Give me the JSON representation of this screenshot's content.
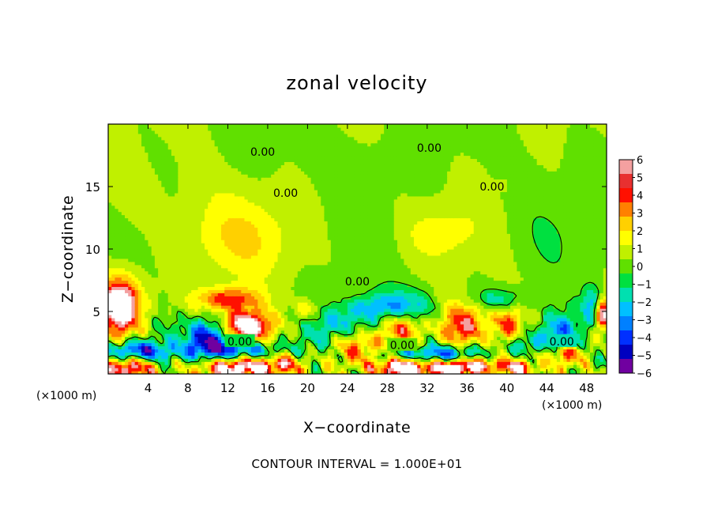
{
  "chart_data": {
    "type": "heatmap",
    "title": "zonal velocity",
    "xlabel": "X−coordinate",
    "ylabel": "Z−coordinate",
    "x_multiplier_label": "(×1000 m)",
    "z_multiplier_label": "(×1000 m)",
    "xlim": [
      0,
      50
    ],
    "zlim": [
      0,
      20
    ],
    "x_ticks": [
      "4",
      "8",
      "12",
      "16",
      "20",
      "24",
      "28",
      "32",
      "36",
      "40",
      "44",
      "48"
    ],
    "z_ticks": [
      "5",
      "10",
      "15"
    ],
    "footnote": "CONTOUR INTERVAL = 1.000E+01",
    "colorbar": {
      "labels": [
        "6",
        "5",
        "4",
        "3",
        "2",
        "1",
        "0",
        "−1",
        "−2",
        "−3",
        "−4",
        "−5",
        "−6"
      ],
      "levels": [
        6,
        5,
        4,
        3,
        2,
        1,
        0,
        -1,
        -2,
        -3,
        -4,
        -5,
        -6
      ],
      "colors": [
        "#f4a0a0",
        "#e83030",
        "#ff1000",
        "#ff8000",
        "#ffd000",
        "#ffff00",
        "#c0f000",
        "#60e000",
        "#00e040",
        "#00e0b0",
        "#00c0ff",
        "#0080ff",
        "#0030ff",
        "#0000c0",
        "#7000a0"
      ]
    },
    "contour_labels": [
      {
        "text": "0.00",
        "x": 15.5,
        "z": 17.8
      },
      {
        "text": "0.00",
        "x": 32.2,
        "z": 18.1
      },
      {
        "text": "0.00",
        "x": 17.8,
        "z": 14.5
      },
      {
        "text": "0.00",
        "x": 38.5,
        "z": 15.0
      },
      {
        "text": "0.00",
        "x": 25.0,
        "z": 7.4
      },
      {
        "text": "0.00",
        "x": 13.2,
        "z": 2.6
      },
      {
        "text": "0.00",
        "x": 29.5,
        "z": 2.3
      },
      {
        "text": "0.00",
        "x": 45.5,
        "z": 2.6
      }
    ],
    "features": [
      {
        "x": 1.2,
        "z": 5.5,
        "rx": 2.0,
        "rz": 2.2,
        "v": 9
      },
      {
        "x": 13.8,
        "z": 3.8,
        "rx": 2.6,
        "rz": 1.2,
        "v": 9
      },
      {
        "x": 13.2,
        "z": 0.6,
        "rx": 3.6,
        "rz": 1.1,
        "v": 8.5
      },
      {
        "x": 2.0,
        "z": 0.6,
        "rx": 2.6,
        "rz": 0.9,
        "v": 6.5
      },
      {
        "x": 29.5,
        "z": 3.9,
        "rx": 2.3,
        "rz": 1.3,
        "v": 9
      },
      {
        "x": 29.8,
        "z": 0.6,
        "rx": 2.6,
        "rz": 1.0,
        "v": 9
      },
      {
        "x": 34.7,
        "z": 0.5,
        "rx": 2.5,
        "rz": 0.8,
        "v": 8.5
      },
      {
        "x": 41.0,
        "z": 0.5,
        "rx": 1.6,
        "rz": 0.6,
        "v": 7
      },
      {
        "x": 49.6,
        "z": 4.8,
        "rx": 0.8,
        "rz": 1.2,
        "v": 7
      },
      {
        "x": 12.0,
        "z": 6.0,
        "rx": 3.2,
        "rz": 0.9,
        "v": 5
      },
      {
        "x": 35.5,
        "z": 3.9,
        "rx": 2.4,
        "rz": 1.9,
        "v": 5.5
      },
      {
        "x": 40.0,
        "z": 4.0,
        "rx": 1.4,
        "rz": 1.3,
        "v": 4.5
      },
      {
        "x": 46.0,
        "z": 1.6,
        "rx": 1.6,
        "rz": 0.9,
        "v": 4.5
      },
      {
        "x": 20.0,
        "z": 5.2,
        "rx": 1.4,
        "rz": 0.8,
        "v": 2.5
      },
      {
        "x": 25.0,
        "z": 2.0,
        "rx": 2.5,
        "rz": 1.3,
        "v": 3.5
      },
      {
        "x": 17.5,
        "z": 0.8,
        "rx": 2.0,
        "rz": 0.8,
        "v": 4
      },
      {
        "x": 38.0,
        "z": 0.8,
        "rx": 2.0,
        "rz": 0.7,
        "v": 4
      },
      {
        "x": 12.5,
        "z": 10.8,
        "rx": 6.0,
        "rz": 3.2,
        "v": 1.8
      },
      {
        "x": 33.2,
        "z": 11.3,
        "rx": 3.6,
        "rz": 2.0,
        "v": 1.4
      },
      {
        "x": 5.5,
        "z": 14.5,
        "rx": 6.0,
        "rz": 3.5,
        "v": 0.6
      },
      {
        "x": 10.0,
        "z": 2.9,
        "rx": 2.4,
        "rz": 1.5,
        "v": -7
      },
      {
        "x": 3.0,
        "z": 1.8,
        "rx": 3.4,
        "rz": 0.9,
        "v": -7
      },
      {
        "x": 13.0,
        "z": 1.8,
        "rx": 4.2,
        "rz": 0.8,
        "v": -6
      },
      {
        "x": 29.5,
        "z": 4.7,
        "rx": 3.2,
        "rz": 1.7,
        "v": -6.5
      },
      {
        "x": 30.0,
        "z": 1.5,
        "rx": 3.5,
        "rz": 0.7,
        "v": -5.5
      },
      {
        "x": 35.0,
        "z": 1.6,
        "rx": 3.0,
        "rz": 0.7,
        "v": -5
      },
      {
        "x": 45.2,
        "z": 3.3,
        "rx": 2.0,
        "rz": 1.6,
        "v": -5
      },
      {
        "x": 48.5,
        "z": 5.5,
        "rx": 1.0,
        "rz": 1.5,
        "v": -4
      },
      {
        "x": 23.0,
        "z": 4.2,
        "rx": 3.2,
        "rz": 1.4,
        "v": -3
      },
      {
        "x": 39.0,
        "z": 6.0,
        "rx": 2.8,
        "rz": 0.8,
        "v": -2.5
      },
      {
        "x": 42.0,
        "z": 2.4,
        "rx": 1.5,
        "rz": 0.8,
        "v": -3
      },
      {
        "x": 6.0,
        "z": 4.0,
        "rx": 1.6,
        "rz": 1.0,
        "v": -1.2
      },
      {
        "x": 20.5,
        "z": 2.5,
        "rx": 2.0,
        "rz": 1.0,
        "v": -1.5
      },
      {
        "x": 26.0,
        "z": 5.5,
        "rx": 2.2,
        "rz": 0.8,
        "v": -1.8
      },
      {
        "x": 25.0,
        "z": 17.5,
        "rx": 11.0,
        "rz": 2.2,
        "v": -0.4
      },
      {
        "x": 44.0,
        "z": 11.0,
        "rx": 5.0,
        "rz": 3.0,
        "v": -0.3
      }
    ],
    "grid": false,
    "legend_position": "right"
  }
}
